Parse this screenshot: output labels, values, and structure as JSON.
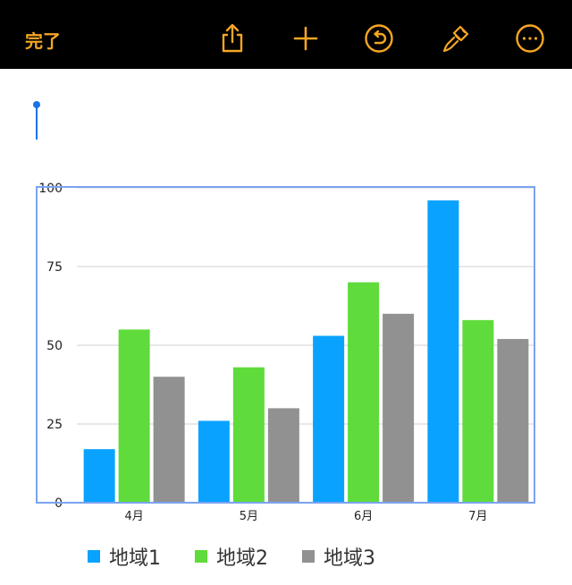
{
  "toolbar": {
    "done_label": "完了",
    "accent_color": "#f6a623",
    "icons": [
      "share-icon",
      "plus-icon",
      "undo-icon",
      "paintbrush-icon",
      "more-icon"
    ]
  },
  "chart_data": {
    "type": "bar",
    "categories": [
      "4月",
      "5月",
      "6月",
      "7月"
    ],
    "series": [
      {
        "name": "地域1",
        "values": [
          17,
          26,
          53,
          96
        ],
        "color": "#0aa2ff"
      },
      {
        "name": "地域2",
        "values": [
          55,
          43,
          70,
          58
        ],
        "color": "#5fdb3b"
      },
      {
        "name": "地域3",
        "values": [
          40,
          30,
          60,
          52
        ],
        "color": "#919191"
      }
    ],
    "ylim": [
      0,
      100
    ],
    "yticks": [
      0,
      25,
      50,
      75,
      100
    ],
    "grid": true,
    "legend": "bottom",
    "selected": true
  }
}
